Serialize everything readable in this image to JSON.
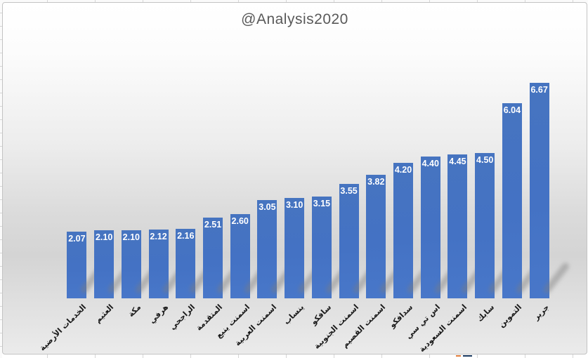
{
  "title": "@Analysis2020",
  "chart_data": {
    "type": "bar",
    "title": "@Analysis2020",
    "categories": [
      "الخدمات الأرضية",
      "العثيم",
      "مكة",
      "هرفي",
      "الراجحي",
      "المتقدمة",
      "اسمنت ينبع",
      "اسمنت العربية",
      "ينساب",
      "سافكو",
      "اسمنت الجنوبية",
      "اسمنت القصيم",
      "سدافكو",
      "اس تي سي",
      "اسمنت السعودية",
      "سابك",
      "التموين",
      "جرير"
    ],
    "values": [
      2.07,
      2.1,
      2.1,
      2.12,
      2.16,
      2.51,
      2.6,
      3.05,
      3.1,
      3.15,
      3.55,
      3.82,
      4.2,
      4.4,
      4.45,
      4.5,
      6.04,
      6.67
    ],
    "value_labels": [
      "2.07",
      "2.10",
      "2.10",
      "2.12",
      "2.16",
      "2.51",
      "2.60",
      "3.05",
      "3.10",
      "3.15",
      "3.55",
      "3.82",
      "4.20",
      "4.40",
      "4.45",
      "4.50",
      "6.04",
      "6.67"
    ],
    "xlabel": "",
    "ylabel": "",
    "ylim": [
      0,
      7
    ],
    "gridlines": false,
    "legend": false,
    "axis_label_rotation_deg": -45,
    "bar_color": "#4472c4",
    "value_label_color": "#ffffff",
    "title_color": "#595959"
  },
  "worksheet": {
    "gridline_color": "#d6d6d6",
    "peek_marks": [
      {
        "name": "orange-cell-mark",
        "color": "#e07b39"
      },
      {
        "name": "navy-cell-mark",
        "color": "#17375e"
      }
    ]
  }
}
